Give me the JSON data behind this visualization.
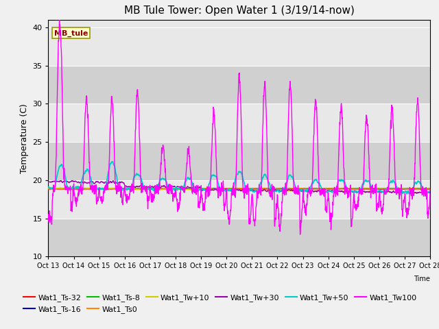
{
  "title": "MB Tule Tower: Open Water 1 (3/19/14-now)",
  "xlabel": "Time",
  "ylabel": "Temperature (C)",
  "ylim": [
    10,
    41
  ],
  "yticks": [
    10,
    15,
    20,
    25,
    30,
    35,
    40
  ],
  "n_days": 15,
  "x_tick_labels": [
    "Oct 13",
    "Oct 14",
    "Oct 15",
    "Oct 16",
    "Oct 17",
    "Oct 18",
    "Oct 19",
    "Oct 20",
    "Oct 21",
    "Oct 22",
    "Oct 23",
    "Oct 24",
    "Oct 25",
    "Oct 26",
    "Oct 27",
    "Oct 28"
  ],
  "series_colors": {
    "Wat1_Ts-32": "#ff0000",
    "Wat1_Ts-16": "#0000bb",
    "Wat1_Ts-8": "#00bb00",
    "Wat1_Ts0": "#ff8800",
    "Wat1_Tw+10": "#cccc00",
    "Wat1_Tw+30": "#9900aa",
    "Wat1_Tw+50": "#00cccc",
    "Wat1_Tw100": "#ff00ff"
  },
  "annotation_text": "MB_tule",
  "title_fontsize": 11,
  "axis_fontsize": 9,
  "legend_fontsize": 8,
  "tw100_spike_heights": [
    22,
    12,
    12,
    13,
    6,
    5,
    10,
    15,
    14,
    14,
    12,
    11,
    10,
    11,
    12
  ],
  "tw100_trough_depths": [
    4,
    3,
    3,
    3,
    2,
    4,
    4,
    7,
    7,
    8,
    4,
    7,
    4,
    4,
    5
  ],
  "tw50_bump_heights": [
    3,
    2.5,
    3.5,
    2,
    1.5,
    1.5,
    2,
    2.5,
    2,
    2,
    1.5,
    1.5,
    1.5,
    1.5,
    1.5
  ]
}
